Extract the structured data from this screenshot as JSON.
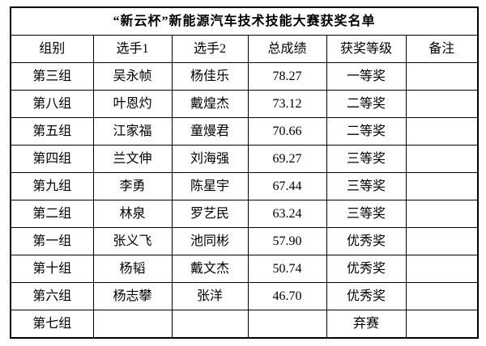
{
  "title": "“新云杯”新能源汽车技术技能大赛获奖名单",
  "columns": [
    "组别",
    "选手1",
    "选手2",
    "总成绩",
    "获奖等级",
    "备注"
  ],
  "column_keys": [
    "group",
    "player1",
    "player2",
    "total-score",
    "award-level",
    "remarks"
  ],
  "rows": [
    [
      "第三组",
      "吴永帧",
      "杨佳乐",
      "78.27",
      "一等奖",
      ""
    ],
    [
      "第八组",
      "叶恩灼",
      "戴煌杰",
      "73.12",
      "二等奖",
      ""
    ],
    [
      "第五组",
      "江家福",
      "童熳君",
      "70.66",
      "二等奖",
      ""
    ],
    [
      "第四组",
      "兰文伸",
      "刘海强",
      "69.27",
      "三等奖",
      ""
    ],
    [
      "第九组",
      "李勇",
      "陈星宇",
      "67.44",
      "三等奖",
      ""
    ],
    [
      "第二组",
      "林泉",
      "罗艺民",
      "63.24",
      "三等奖",
      ""
    ],
    [
      "第一组",
      "张义飞",
      "池同彬",
      "57.90",
      "优秀奖",
      ""
    ],
    [
      "第十组",
      "杨韬",
      "戴文杰",
      "50.74",
      "优秀奖",
      ""
    ],
    [
      "第六组",
      "杨志攀",
      "张洋",
      "46.70",
      "优秀奖",
      ""
    ],
    [
      "第七组",
      "",
      "",
      "",
      "弃赛",
      ""
    ]
  ],
  "colors": {
    "border": "#000000",
    "text": "#000000",
    "background": "#ffffff"
  }
}
